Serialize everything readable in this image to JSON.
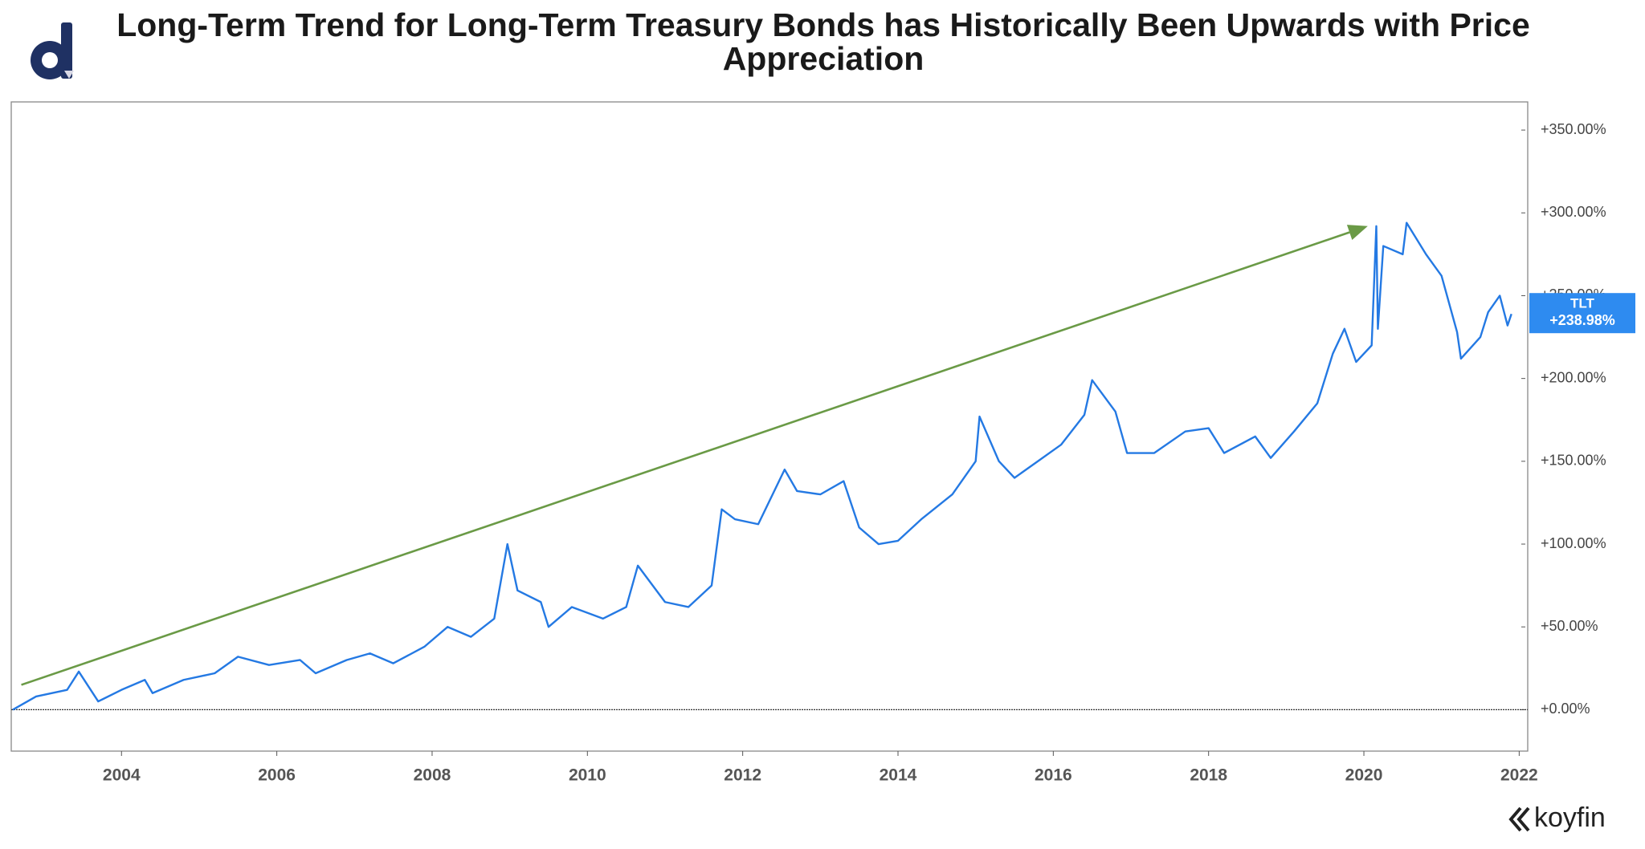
{
  "chart_data": {
    "type": "line",
    "title": "Long-Term Trend for Long-Term Treasury Bonds has Historically Been Upwards with Price Appreciation",
    "x": [
      2002.6,
      2002.9,
      2003.3,
      2003.45,
      2003.7,
      2004.0,
      2004.3,
      2004.4,
      2004.8,
      2005.2,
      2005.5,
      2005.9,
      2006.3,
      2006.5,
      2006.9,
      2007.2,
      2007.5,
      2007.9,
      2008.2,
      2008.5,
      2008.8,
      2008.97,
      2009.1,
      2009.4,
      2009.5,
      2009.8,
      2010.2,
      2010.5,
      2010.65,
      2011.0,
      2011.3,
      2011.6,
      2011.73,
      2011.9,
      2012.2,
      2012.54,
      2012.7,
      2013.0,
      2013.3,
      2013.5,
      2013.75,
      2014.0,
      2014.3,
      2014.7,
      2015.0,
      2015.05,
      2015.3,
      2015.5,
      2015.8,
      2016.1,
      2016.4,
      2016.5,
      2016.8,
      2016.95,
      2017.3,
      2017.7,
      2018.0,
      2018.2,
      2018.6,
      2018.8,
      2019.1,
      2019.4,
      2019.6,
      2019.75,
      2019.9,
      2020.1,
      2020.16,
      2020.18,
      2020.25,
      2020.5,
      2020.55,
      2020.8,
      2021.0,
      2021.2,
      2021.25,
      2021.5,
      2021.6,
      2021.75,
      2021.85,
      2021.9
    ],
    "series": [
      {
        "name": "TLT",
        "color": "#2479e3",
        "values": [
          0,
          8,
          12,
          23,
          5,
          12,
          18,
          10,
          18,
          22,
          32,
          27,
          30,
          22,
          30,
          34,
          28,
          38,
          50,
          44,
          55,
          100,
          72,
          65,
          50,
          62,
          55,
          62,
          87,
          65,
          62,
          75,
          121,
          115,
          112,
          145,
          132,
          130,
          138,
          110,
          100,
          102,
          115,
          130,
          150,
          177,
          150,
          140,
          150,
          160,
          178,
          199,
          180,
          155,
          155,
          168,
          170,
          155,
          165,
          152,
          168,
          185,
          215,
          230,
          210,
          220,
          292,
          230,
          280,
          275,
          294,
          275,
          262,
          228,
          212,
          225,
          240,
          250,
          232,
          238.98
        ],
        "last_label": {
          "value": 238.98,
          "label": "+238.98%"
        }
      }
    ],
    "xlim": [
      2002.58,
      2022.11
    ],
    "xticks": [
      2004,
      2006,
      2008,
      2010,
      2012,
      2014,
      2016,
      2018,
      2020,
      2022
    ],
    "ylim": [
      -25,
      367
    ],
    "yticks": [
      {
        "value": 0,
        "label": "+0.00%"
      },
      {
        "value": 50,
        "label": "+50.00%"
      },
      {
        "value": 100,
        "label": "+100.00%"
      },
      {
        "value": 150,
        "label": "+150.00%"
      },
      {
        "value": 200,
        "label": "+200.00%"
      },
      {
        "value": 250,
        "label": "+250.00%"
      },
      {
        "value": 300,
        "label": "+300.00%"
      },
      {
        "value": 350,
        "label": "+350.00%"
      }
    ],
    "grid": false,
    "arrow": {
      "x": [
        2002.71,
        2020.05
      ],
      "y": [
        15,
        292
      ],
      "color": "#6a9a46"
    },
    "watermark": "koyfin"
  }
}
